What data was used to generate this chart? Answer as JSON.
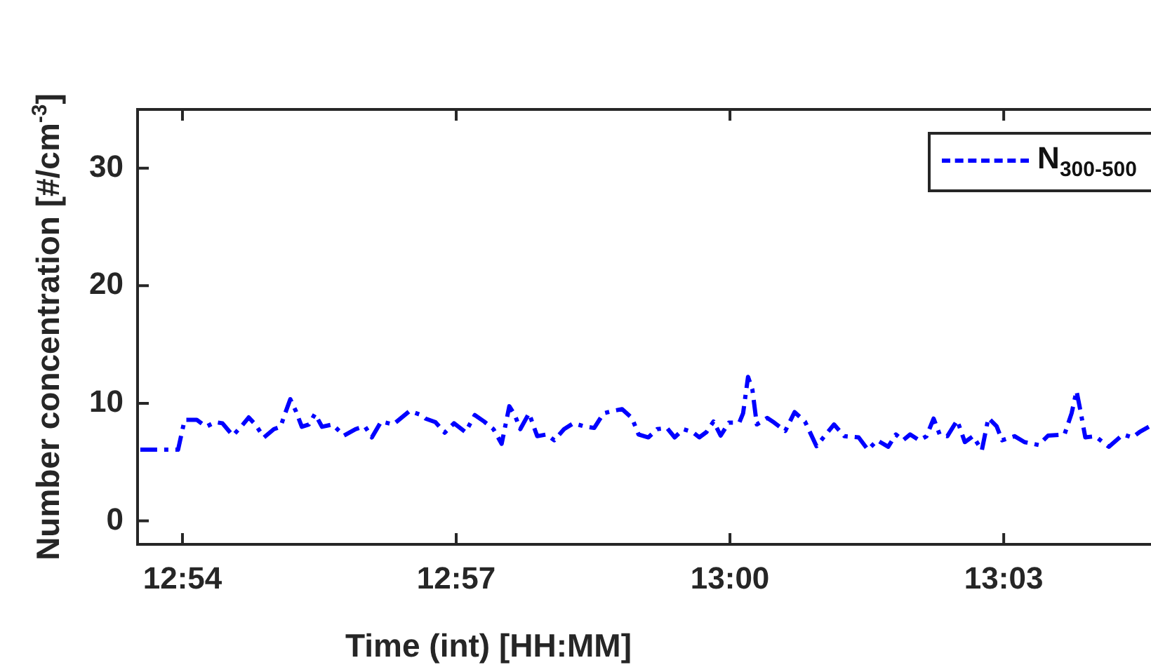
{
  "chart_data": {
    "type": "line",
    "xlabel": "Time (int) [HH:MM]",
    "ylabel": "Number concentration [#/cm$^{-3}$]",
    "xlim": [
      12.8918,
      13.0769
    ],
    "xticks": [
      {
        "value": 12.9,
        "label": "12:54"
      },
      {
        "value": 12.95,
        "label": "12:57"
      },
      {
        "value": 13.0,
        "label": "13:00"
      },
      {
        "value": 13.05,
        "label": "13:03"
      }
    ],
    "ylim": [
      -2,
      35
    ],
    "yticks": [
      0,
      10,
      20,
      30
    ],
    "legend": "top right",
    "line_style": "dashed",
    "marker": "none",
    "series": [
      {
        "name": "N$_{300-500}$",
        "color": "#0000ff",
        "x": [
          12.8923,
          12.8992,
          12.9004,
          12.9026,
          12.9043,
          12.906,
          12.9073,
          12.9092,
          12.9107,
          12.9121,
          12.9133,
          12.9149,
          12.9167,
          12.9179,
          12.9188,
          12.9197,
          12.9207,
          12.9218,
          12.9231,
          12.9242,
          12.9255,
          12.9274,
          12.9295,
          12.9316,
          12.9333,
          12.9346,
          12.9363,
          12.9385,
          12.9415,
          12.9436,
          12.9444,
          12.9462,
          12.9479,
          12.9496,
          12.9517,
          12.9534,
          12.9551,
          12.9568,
          12.9583,
          12.9597,
          12.9607,
          12.9617,
          12.9633,
          12.9648,
          12.9665,
          12.9679,
          12.9697,
          12.9714,
          12.9733,
          12.9752,
          12.9769,
          12.9786,
          12.9803,
          12.9821,
          12.9833,
          12.9851,
          12.9867,
          12.9885,
          12.9899,
          12.9915,
          12.9932,
          12.9944,
          12.9957,
          12.997,
          12.9983,
          12.9998,
          13.0017,
          13.0024,
          13.0033,
          13.0041,
          13.0049,
          13.0068,
          13.0081,
          13.0101,
          13.0118,
          13.0137,
          13.0158,
          13.0175,
          13.019,
          13.0209,
          13.0235,
          13.0252,
          13.0269,
          13.0289,
          13.0303,
          13.0316,
          13.0329,
          13.0346,
          13.0359,
          13.0372,
          13.0383,
          13.0397,
          13.0415,
          13.0429,
          13.0444,
          13.046,
          13.0472,
          13.0487,
          13.0497,
          13.052,
          13.0538,
          13.0564,
          13.0581,
          13.0611,
          13.0624,
          13.0633,
          13.0641,
          13.0649,
          13.0667,
          13.0692,
          13.0718,
          13.0735,
          13.0748,
          13.0765
        ],
        "values": [
          6.05,
          6.05,
          8.6,
          8.6,
          8.0,
          8.4,
          8.3,
          7.25,
          8.0,
          8.8,
          8.2,
          7.1,
          7.8,
          8.0,
          9.2,
          10.35,
          9.35,
          8.0,
          8.2,
          9.1,
          8.0,
          8.2,
          7.25,
          7.8,
          8.05,
          7.1,
          8.45,
          8.2,
          9.35,
          9.0,
          8.7,
          8.4,
          7.5,
          8.3,
          7.55,
          9.0,
          8.45,
          7.8,
          6.55,
          9.75,
          9.0,
          7.8,
          9.15,
          7.2,
          7.35,
          6.85,
          7.8,
          8.3,
          8.05,
          7.9,
          9.15,
          9.35,
          9.5,
          8.75,
          7.35,
          7.1,
          7.8,
          7.9,
          7.1,
          7.8,
          7.55,
          7.1,
          7.55,
          8.45,
          7.25,
          8.35,
          8.35,
          9.15,
          12.25,
          11.15,
          8.2,
          8.75,
          8.35,
          7.65,
          9.25,
          8.45,
          6.35,
          7.35,
          8.2,
          7.2,
          7.1,
          6.05,
          6.85,
          6.3,
          7.35,
          6.85,
          7.35,
          6.85,
          7.2,
          8.7,
          7.35,
          7.2,
          8.55,
          6.7,
          7.2,
          6.0,
          8.75,
          8.05,
          6.85,
          7.2,
          6.7,
          6.45,
          7.25,
          7.35,
          9.15,
          11.05,
          9.15,
          7.1,
          7.2,
          6.3,
          7.35,
          7.1,
          7.55,
          8.0
        ]
      }
    ]
  }
}
